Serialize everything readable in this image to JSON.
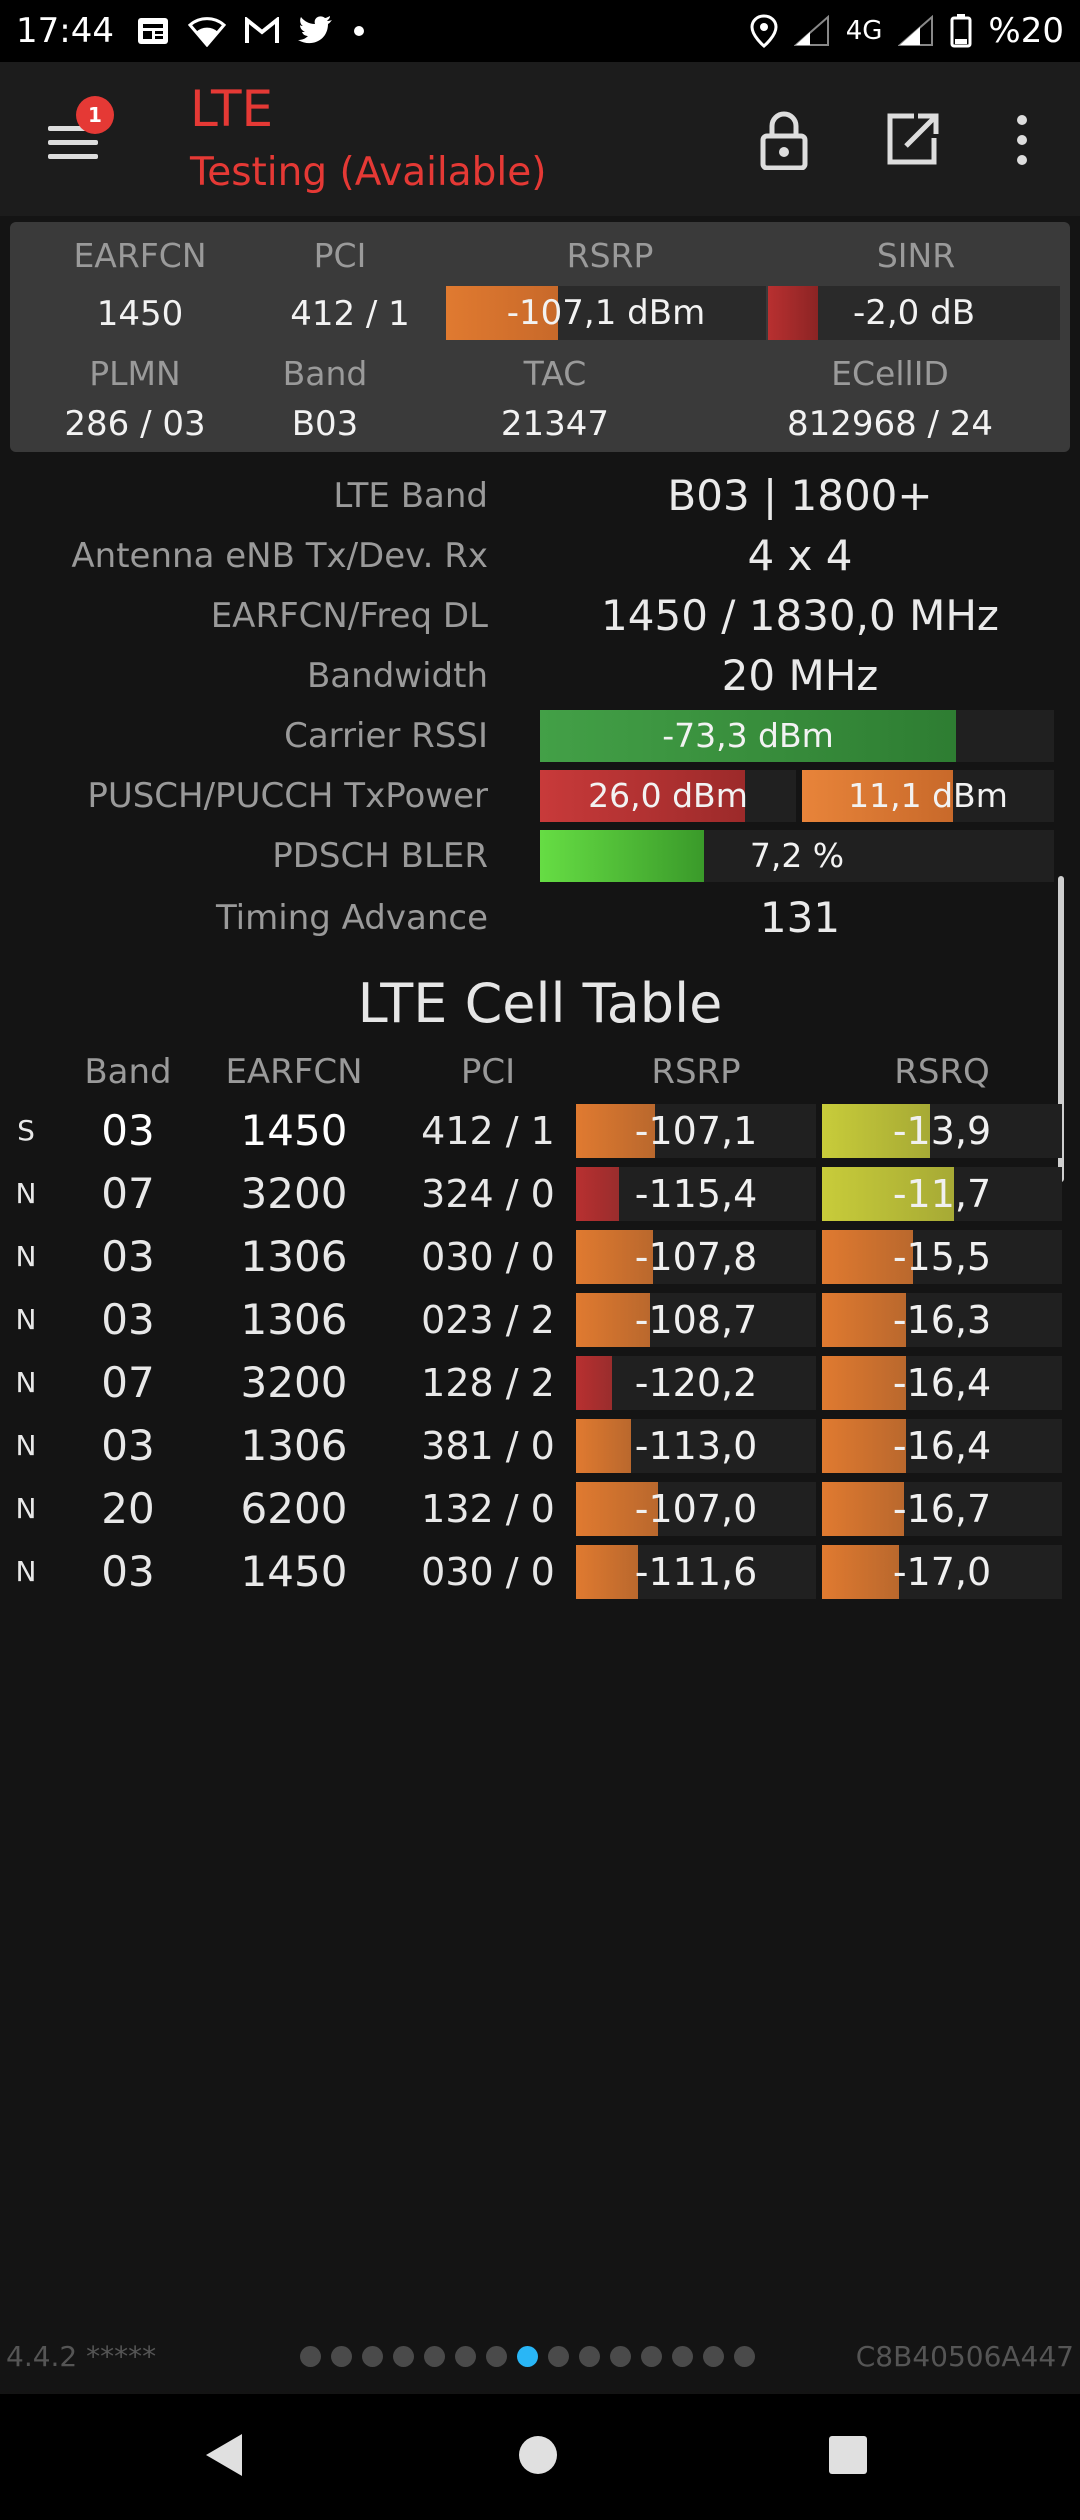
{
  "status_bar": {
    "time": "17:44",
    "network_type": "4G",
    "battery": "%20",
    "icons": [
      "news-icon",
      "wifi-icon",
      "gmail-icon",
      "twitter-icon",
      "dot-icon",
      "location-icon",
      "signal-icon",
      "signal-icon",
      "battery-icon"
    ]
  },
  "app_bar": {
    "title": "LTE",
    "subtitle": "Testing (Available)",
    "notification_count": "1",
    "colors": {
      "title": "#e53935",
      "background": "#1c1c1c"
    }
  },
  "summary": {
    "labels": {
      "earfcn": "EARFCN",
      "pci": "PCI",
      "rsrp": "RSRP",
      "sinr": "SINR",
      "plmn": "PLMN",
      "band": "Band",
      "tac": "TAC",
      "ecellid": "ECellID"
    },
    "earfcn": "1450",
    "pci": "412 / 1",
    "rsrp": "-107,1 dBm",
    "rsrp_level": 0.35,
    "sinr": "-2,0 dB",
    "sinr_level": 0.17,
    "plmn": "286 / 03",
    "band": "B03",
    "tac": "21347",
    "ecellid": "812968 / 24"
  },
  "details": {
    "lte_band_label": "LTE Band",
    "lte_band": "B03 | 1800+",
    "antenna_label": "Antenna eNB Tx/Dev. Rx",
    "antenna": "4 x 4",
    "earfcn_freq_label": "EARFCN/Freq DL",
    "earfcn_freq": "1450 / 1830,0 MHz",
    "bandwidth_label": "Bandwidth",
    "bandwidth": "20 MHz",
    "carrier_rssi_label": "Carrier RSSI",
    "carrier_rssi": "-73,3 dBm",
    "carrier_rssi_level": 0.81,
    "txpower_label": "PUSCH/PUCCH TxPower",
    "pusch_txpower": "26,0 dBm",
    "pusch_level": 0.8,
    "pucch_txpower": "11,1 dBm",
    "pucch_level": 0.6,
    "bler_label": "PDSCH BLER",
    "bler": "7,2 %",
    "bler_level": 0.32,
    "timing_advance_label": "Timing Advance",
    "timing_advance": "131"
  },
  "cell_table": {
    "title": "LTE Cell Table",
    "headers": {
      "band": "Band",
      "earfcn": "EARFCN",
      "pci": "PCI",
      "rsrp": "RSRP",
      "rsrq": "RSRQ"
    },
    "rows": [
      {
        "type": "S",
        "band": "03",
        "earfcn": "1450",
        "pci": "412 / 1",
        "rsrp": "-107,1",
        "rsrp_level": 0.33,
        "rsrp_color": "#e07a30",
        "rsrq": "-13,9",
        "rsrq_level": 0.45,
        "rsrq_color": "#c8cc3a"
      },
      {
        "type": "N",
        "band": "07",
        "earfcn": "3200",
        "pci": "324 / 0",
        "rsrp": "-115,4",
        "rsrp_level": 0.18,
        "rsrp_color": "#b83030",
        "rsrq": "-11,7",
        "rsrq_level": 0.55,
        "rsrq_color": "#c8cc3a"
      },
      {
        "type": "N",
        "band": "03",
        "earfcn": "1306",
        "pci": "030 / 0",
        "rsrp": "-107,8",
        "rsrp_level": 0.32,
        "rsrp_color": "#e07a30",
        "rsrq": "-15,5",
        "rsrq_level": 0.38,
        "rsrq_color": "#e07a30"
      },
      {
        "type": "N",
        "band": "03",
        "earfcn": "1306",
        "pci": "023 / 2",
        "rsrp": "-108,7",
        "rsrp_level": 0.31,
        "rsrp_color": "#e07a30",
        "rsrq": "-16,3",
        "rsrq_level": 0.35,
        "rsrq_color": "#e07a30"
      },
      {
        "type": "N",
        "band": "07",
        "earfcn": "3200",
        "pci": "128 / 2",
        "rsrp": "-120,2",
        "rsrp_level": 0.15,
        "rsrp_color": "#b83030",
        "rsrq": "-16,4",
        "rsrq_level": 0.35,
        "rsrq_color": "#e07a30"
      },
      {
        "type": "N",
        "band": "03",
        "earfcn": "1306",
        "pci": "381 / 0",
        "rsrp": "-113,0",
        "rsrp_level": 0.23,
        "rsrp_color": "#e07a30",
        "rsrq": "-16,4",
        "rsrq_level": 0.35,
        "rsrq_color": "#e07a30"
      },
      {
        "type": "N",
        "band": "20",
        "earfcn": "6200",
        "pci": "132 / 0",
        "rsrp": "-107,0",
        "rsrp_level": 0.34,
        "rsrp_color": "#e07a30",
        "rsrq": "-16,7",
        "rsrq_level": 0.34,
        "rsrq_color": "#e07a30"
      },
      {
        "type": "N",
        "band": "03",
        "earfcn": "1450",
        "pci": "030 / 0",
        "rsrp": "-111,6",
        "rsrp_level": 0.26,
        "rsrp_color": "#e07a30",
        "rsrq": "-17,0",
        "rsrq_level": 0.32,
        "rsrq_color": "#e07a30"
      }
    ]
  },
  "footer": {
    "version": "4.4.2 *****",
    "device_id": "C8B40506A447",
    "page_count": 15,
    "active_page": 8
  }
}
